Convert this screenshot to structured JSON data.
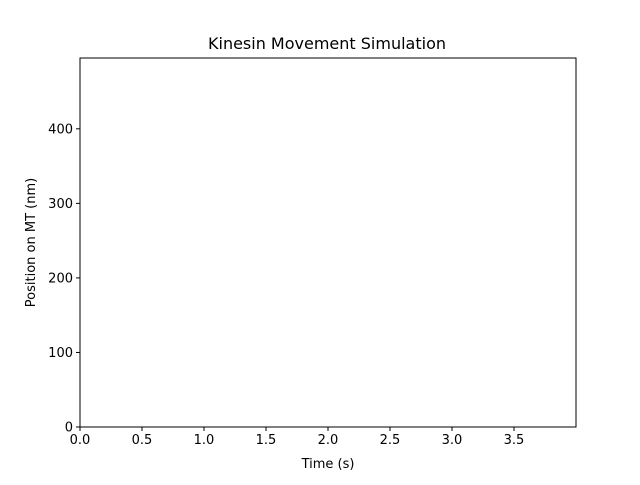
{
  "chart_data": {
    "type": "line",
    "title": "Kinesin Movement Simulation",
    "xlabel": "Time (s)",
    "ylabel": "Position on MT (nm)",
    "xlim": [
      0,
      4.0
    ],
    "ylim": [
      0,
      495
    ],
    "xticks": [
      0.0,
      0.5,
      1.0,
      1.5,
      2.0,
      2.5,
      3.0,
      3.5
    ],
    "xtick_labels": [
      "0.0",
      "0.5",
      "1.0",
      "1.5",
      "2.0",
      "2.5",
      "3.0",
      "3.5"
    ],
    "yticks": [
      0,
      100,
      200,
      300,
      400
    ],
    "ytick_labels": [
      "0",
      "100",
      "200",
      "300",
      "400"
    ],
    "grid": false,
    "series": []
  }
}
